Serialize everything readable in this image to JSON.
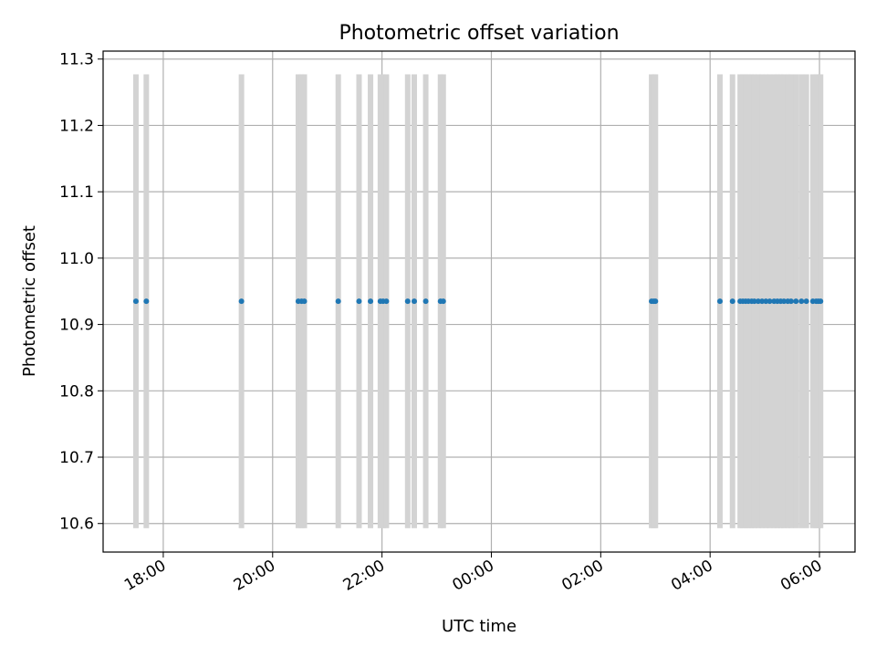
{
  "chart_data": {
    "type": "scatter",
    "title": "Photometric offset variation",
    "xlabel": "UTC time",
    "ylabel": "Photometric offset",
    "x_ticks": [
      "18:00",
      "20:00",
      "22:00",
      "00:00",
      "02:00",
      "04:00",
      "06:00"
    ],
    "y_ticks": [
      "10.6",
      "10.7",
      "10.8",
      "10.9",
      "11.0",
      "11.1",
      "11.2",
      "11.3"
    ],
    "xlim_hours": [
      16.9,
      30.65
    ],
    "ylim": [
      10.557,
      11.312
    ],
    "grid": true,
    "background_band_color": "#d3d3d3",
    "point_color": "#1f77b4",
    "bands_y": [
      10.593,
      11.277
    ],
    "points_y": 10.935,
    "points_x_hours": [
      17.5,
      17.69,
      19.43,
      20.47,
      20.53,
      20.58,
      21.2,
      21.58,
      21.79,
      21.97,
      22.02,
      22.08,
      22.47,
      22.59,
      22.8,
      23.07,
      23.12,
      26.93,
      26.97,
      27.0,
      28.18,
      28.41,
      28.55,
      28.6,
      28.65,
      28.7,
      28.76,
      28.81,
      28.88,
      28.95,
      29.02,
      29.09,
      29.17,
      29.23,
      29.29,
      29.35,
      29.42,
      29.48,
      29.57,
      29.67,
      29.76,
      29.88,
      29.94,
      29.98,
      30.02
    ]
  }
}
